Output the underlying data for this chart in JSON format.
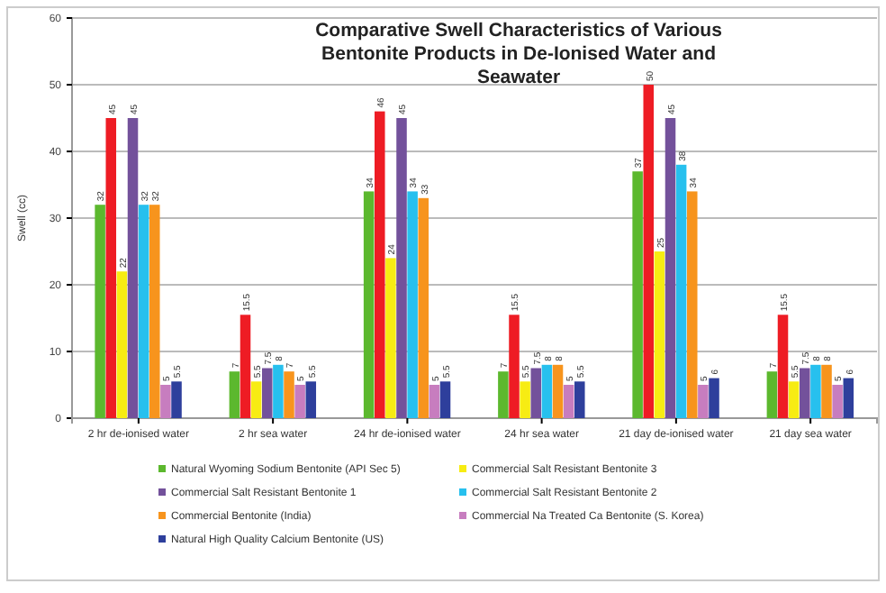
{
  "chart_data": {
    "type": "bar",
    "title": "Comparative Swell Characteristics of Various Bentonite Products in De-Ionised Water and Seawater",
    "ylabel": "Swell (cc)",
    "categories": [
      "2 hr de-ionised water",
      "2 hr sea water",
      "24 hr de-ionised water",
      "24 hr sea water",
      "21 day de-ionised water",
      "21 day sea water"
    ],
    "series": [
      {
        "name": "Natural Wyoming Sodium Bentonite (API Sec 5)",
        "color": "#5cb82e",
        "values": [
          32,
          7,
          34,
          7,
          37,
          7
        ]
      },
      {
        "color": "#ee1c24",
        "values": [
          45,
          15.5,
          46,
          15.5,
          50,
          15.5
        ]
      },
      {
        "name": "Commercial Salt Resistant Bentonite 3",
        "color": "#f7ec13",
        "values": [
          22,
          5.5,
          24,
          5.5,
          25,
          5.5
        ]
      },
      {
        "name": "Commercial Salt Resistant Bentonite 1",
        "color": "#73519b",
        "values": [
          45,
          7.5,
          45,
          7.5,
          45,
          7.5
        ]
      },
      {
        "name": "Commercial Salt Resistant Bentonite 2",
        "color": "#27c0ee",
        "values": [
          32,
          8,
          34,
          8,
          38,
          8
        ]
      },
      {
        "name": "Commercial Bentonite (India)",
        "color": "#f7941d",
        "values": [
          32,
          7,
          33,
          8,
          34,
          8
        ]
      },
      {
        "name": "Commercial Na Treated Ca Bentonite (S. Korea)",
        "color": "#c77dbf",
        "values": [
          5,
          5,
          5,
          5,
          5,
          5
        ]
      },
      {
        "name": "Natural High Quality Calcium Bentonite (US)",
        "color": "#2e3f9c",
        "values": [
          5.5,
          5.5,
          5.5,
          5.5,
          6,
          6
        ]
      }
    ],
    "ylim": [
      0,
      60
    ],
    "yticks": [
      0,
      10,
      20,
      30,
      40,
      50,
      60
    ],
    "grid": "y",
    "legend": "bottom",
    "data_labels": true
  }
}
